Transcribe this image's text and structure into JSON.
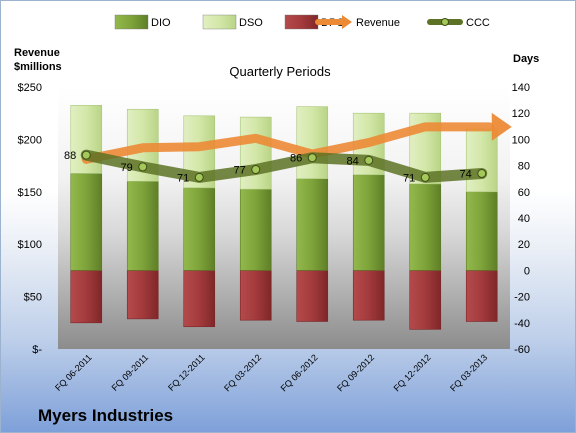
{
  "company": "Myers Industries",
  "chart_data": {
    "type": "bar",
    "title": "Quarterly Periods",
    "left_axis_label": [
      "Revenue",
      "$millions"
    ],
    "right_axis_label": "Days",
    "left_ticks": [
      "$-",
      "$50",
      "$100",
      "$150",
      "$200",
      "$250"
    ],
    "right_ticks": [
      "-60",
      "-40",
      "-20",
      "0",
      "20",
      "40",
      "60",
      "80",
      "100",
      "120",
      "140"
    ],
    "ylim_left": [
      0,
      250
    ],
    "ylim_right": [
      -60,
      140
    ],
    "categories": [
      "FQ 06-2011",
      "FQ 09-2011",
      "FQ 12-2011",
      "FQ 03-2012",
      "FQ 06-2012",
      "FQ 09-2012",
      "FQ 12-2012",
      "FQ 03-2013"
    ],
    "legend": [
      "DIO",
      "DSO",
      "DPO",
      "Revenue",
      "CCC"
    ],
    "series": [
      {
        "name": "DIO",
        "axis": "right",
        "values": [
          74,
          68,
          63,
          62,
          70,
          73,
          66,
          60
        ]
      },
      {
        "name": "DSO",
        "axis": "right",
        "values": [
          52,
          55,
          55,
          55,
          55,
          47,
          54,
          48
        ]
      },
      {
        "name": "DPO",
        "axis": "right",
        "values": [
          -40,
          -37,
          -43,
          -38,
          -39,
          -38,
          -45,
          -39
        ]
      },
      {
        "name": "Revenue",
        "axis": "left",
        "values": [
          181,
          192,
          193,
          201,
          186,
          197,
          212,
          212
        ]
      },
      {
        "name": "CCC",
        "axis": "right",
        "values": [
          88,
          79,
          71,
          77,
          86,
          84,
          71,
          74
        ]
      }
    ],
    "ccc_labels": [
      "88",
      "79",
      "71",
      "77",
      "86",
      "84",
      "71",
      "74"
    ],
    "colors": {
      "DIO": "#7ea33a",
      "DSO": "#d3e7a8",
      "DPO": "#a33a3c",
      "Revenue": "#ec8a35",
      "CCC": "#5d7225"
    },
    "legend_position": "top",
    "grid": false
  }
}
